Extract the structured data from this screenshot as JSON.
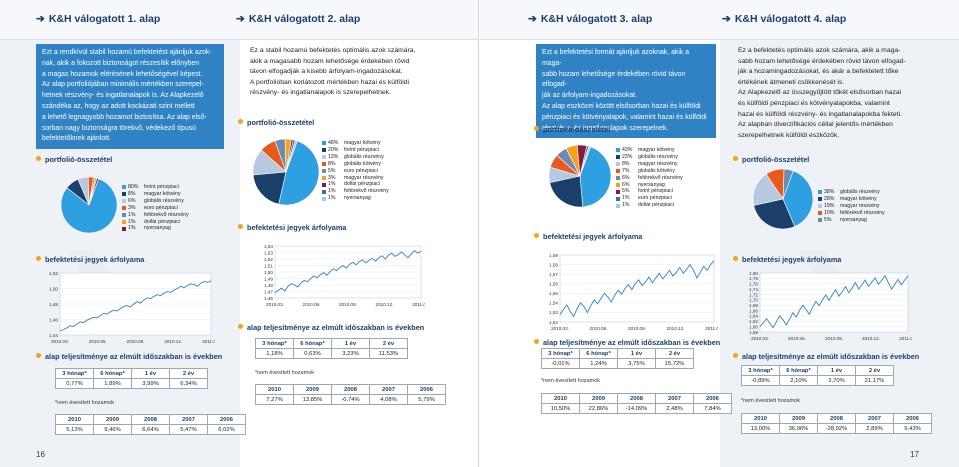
{
  "pages": {
    "left": "16",
    "right": "17"
  },
  "labels": {
    "portfolio": "portfolió-összetétel",
    "units": "befektetési jegyek árfolyama",
    "perf": "alap teljesítménye az elmúlt időszakban is években",
    "annualized": "*nem évesített hozamok"
  },
  "funds": [
    {
      "title": "K&H válogatott 1. alap",
      "desc": [
        "Ezt a rendkívül stabil hozamú befektetést ajánljuk azok-",
        "nak, akik a fokozott biztonságot részesítik előnyben",
        "a magas hozamok elérésének lehetőségével képest.",
        "Az alap portfoliójában minimális mértékben szerepel-",
        "hetnek részvény- és ingatlanalapok is. Az Alapkezelő",
        "szándéka az, hogy az adott kockázati szint mellett",
        "a lehető legnagyobb hozamot biztosítsa. Az alap első-",
        "sorban nagy biztonságra törekvő, védekező típusú",
        "befektetőknek ajánlott."
      ],
      "portfolio": [
        {
          "pct": "80%",
          "label": "forint pénzpiaci",
          "v": 80,
          "color": "#2e9fe0"
        },
        {
          "pct": "8%",
          "label": "magyar kötvény",
          "v": 8,
          "color": "#1b3f6b"
        },
        {
          "pct": "6%",
          "label": "globális részvény",
          "v": 6,
          "color": "#b7c9de"
        },
        {
          "pct": "3%",
          "label": "euro pénzpiaci",
          "v": 3,
          "color": "#e85a1b"
        },
        {
          "pct": "1%",
          "label": "feltörekvő részvény",
          "v": 1,
          "color": "#6b8bb0"
        },
        {
          "pct": "1%",
          "label": "dollár pénzpiaci",
          "v": 1,
          "color": "#f7a21c"
        },
        {
          "pct": "1%",
          "label": "nyersanyag",
          "v": 1,
          "color": "#8b1a3a"
        }
      ],
      "chart": {
        "yticks": [
          "1,52",
          "1,50",
          "1,48",
          "1,46",
          "1,44"
        ],
        "xticks": [
          "2010.03.",
          "2010.06.",
          "2010.09.",
          "2010.12.",
          "2011.03."
        ],
        "ymin": 1.44,
        "ymax": 1.52,
        "values": [
          1.445,
          1.447,
          1.449,
          1.452,
          1.451,
          1.454,
          1.457,
          1.456,
          1.459,
          1.461,
          1.463,
          1.462,
          1.465,
          1.468,
          1.467,
          1.47,
          1.472,
          1.471,
          1.474,
          1.477,
          1.478,
          1.476,
          1.48,
          1.483,
          1.481,
          1.485,
          1.488,
          1.487,
          1.49,
          1.492,
          1.491,
          1.494,
          1.496,
          1.495,
          1.498,
          1.5,
          1.503,
          1.501,
          1.504,
          1.506,
          1.505,
          1.503,
          1.507,
          1.509,
          1.508,
          1.51
        ]
      },
      "short": {
        "headers": [
          "3 hónap*",
          "6 hónap*",
          "1 év",
          "2 év"
        ],
        "values": [
          "0,77%",
          "1,89%",
          "3,99%",
          "6,34%"
        ]
      },
      "years": {
        "headers": [
          "2010",
          "2009",
          "2008",
          "2007",
          "2006"
        ],
        "values": [
          "5,13%",
          "9,46%",
          "6,64%",
          "5,47%",
          "6,02%"
        ]
      }
    },
    {
      "title": "K&H válogatott 2. alap",
      "desc": [
        "Ez a stabil hozamú befektetés optimális azok számára,",
        "akik a magasabb hozam lehetősége érdekében rövid",
        "távon elfogadják a kisebb árfolyam-ingadozásokat.",
        "A portfolióban korlátozott mértékben hazai és külföldi",
        "részvény- és ingatlanalapok is szerepelhetnek."
      ],
      "portfolio": [
        {
          "pct": "48%",
          "label": "magyar kötvény",
          "v": 48,
          "color": "#2e9fe0"
        },
        {
          "pct": "20%",
          "label": "forint pénzpiaci",
          "v": 20,
          "color": "#1b3f6b"
        },
        {
          "pct": "13%",
          "label": "globális részvény",
          "v": 13,
          "color": "#b7c9de"
        },
        {
          "pct": "8%",
          "label": "globális kötvény",
          "v": 8,
          "color": "#e85a1b"
        },
        {
          "pct": "5%",
          "label": "euro pénzpiaci",
          "v": 5,
          "color": "#6b8bb0"
        },
        {
          "pct": "3%",
          "label": "magyar részvény",
          "v": 3,
          "color": "#f7a21c"
        },
        {
          "pct": "1%",
          "label": "dollár pénzpiaci",
          "v": 1,
          "color": "#8b1a3a"
        },
        {
          "pct": "1%",
          "label": "feltörekvő részvény",
          "v": 1,
          "color": "#3a6ea5"
        },
        {
          "pct": "1%",
          "label": "nyersanyag",
          "v": 1,
          "color": "#9ccbe8"
        }
      ],
      "chart": {
        "yticks": [
          "1,54",
          "1,53",
          "1,52",
          "1,51",
          "1,50",
          "1,49",
          "1,48",
          "1,47",
          "1,46"
        ],
        "xticks": [
          "2010.03.",
          "2010.06.",
          "2010.09.",
          "2010.12.",
          "2011.03."
        ],
        "ymin": 1.46,
        "ymax": 1.54,
        "values": [
          1.468,
          1.472,
          1.475,
          1.471,
          1.478,
          1.482,
          1.48,
          1.477,
          1.483,
          1.487,
          1.485,
          1.49,
          1.494,
          1.491,
          1.496,
          1.499,
          1.495,
          1.501,
          1.505,
          1.502,
          1.507,
          1.51,
          1.506,
          1.512,
          1.515,
          1.511,
          1.516,
          1.519,
          1.514,
          1.518,
          1.521,
          1.517,
          1.522,
          1.525,
          1.52,
          1.526,
          1.529,
          1.524,
          1.527,
          1.531,
          1.526,
          1.522,
          1.528,
          1.533,
          1.529,
          1.532
        ]
      },
      "short": {
        "headers": [
          "3 hónap*",
          "6 hónap*",
          "1 év",
          "2 év"
        ],
        "values": [
          "1,18%",
          "0,63%",
          "3,23%",
          "11,53%"
        ]
      },
      "years": {
        "headers": [
          "2010",
          "2009",
          "2008",
          "2007",
          "2006"
        ],
        "values": [
          "7,27%",
          "13,85%",
          "-0,74%",
          "4,08%",
          "5,79%"
        ]
      }
    },
    {
      "title": "K&H válogatott 3. alap",
      "desc": [
        "Ezt a befektetési formát ajánljuk azoknak, akik a maga-",
        "sabb hozam lehetősége érdekében rövid távon elfogad-",
        "ják az árfolyam-ingadozásokat.",
        "Az alap eszközei között elsősorban hazai és külföldi",
        "pénzpiaci és kötvényalapok, valamint hazai és külföldi",
        "részvény- és ingatlanalapok szerepelnek."
      ],
      "portfolio": [
        {
          "pct": "43%",
          "label": "magyar kötvény",
          "v": 43,
          "color": "#2e9fe0"
        },
        {
          "pct": "23%",
          "label": "globális részvény",
          "v": 23,
          "color": "#1b3f6b"
        },
        {
          "pct": "8%",
          "label": "magyar részvény",
          "v": 8,
          "color": "#b7c9de"
        },
        {
          "pct": "7%",
          "label": "globális kötvény",
          "v": 7,
          "color": "#e85a1b"
        },
        {
          "pct": "6%",
          "label": "feltörekvő részvény",
          "v": 6,
          "color": "#6b8bb0"
        },
        {
          "pct": "6%",
          "label": "nyersanyag",
          "v": 6,
          "color": "#f7a21c"
        },
        {
          "pct": "5%",
          "label": "forint pénzpiaci",
          "v": 5,
          "color": "#8b1a3a"
        },
        {
          "pct": "1%",
          "label": "euro pénzpiaci",
          "v": 1,
          "color": "#3a6ea5"
        },
        {
          "pct": "1%",
          "label": "dollár pénzpiaci",
          "v": 1,
          "color": "#9ccbe8"
        }
      ],
      "chart": {
        "yticks": [
          "1,59",
          "1,58",
          "1,57",
          "1,56",
          "1,55",
          "1,54",
          "1,53",
          "1,52"
        ],
        "xticks": [
          "2010.03.",
          "2010.06.",
          "2010.09.",
          "2010.12.",
          "2011.03."
        ],
        "ymin": 1.52,
        "ymax": 1.59,
        "values": [
          1.528,
          1.533,
          1.538,
          1.531,
          1.526,
          1.534,
          1.54,
          1.536,
          1.53,
          1.537,
          1.543,
          1.539,
          1.545,
          1.55,
          1.546,
          1.541,
          1.548,
          1.553,
          1.549,
          1.555,
          1.559,
          1.554,
          1.56,
          1.564,
          1.558,
          1.562,
          1.567,
          1.561,
          1.566,
          1.571,
          1.565,
          1.569,
          1.574,
          1.568,
          1.572,
          1.577,
          1.571,
          1.575,
          1.58,
          1.574,
          1.566,
          1.572,
          1.578,
          1.574,
          1.58,
          1.584
        ]
      },
      "short": {
        "headers": [
          "3 hónap*",
          "6 hónap*",
          "1 év",
          "2 év"
        ],
        "values": [
          "-0,01%",
          "1,24%",
          "3,75%",
          "15,72%"
        ]
      },
      "years": {
        "headers": [
          "2010",
          "2009",
          "2008",
          "2007",
          "2006"
        ],
        "values": [
          "10,50%",
          "22,86%",
          "-14,09%",
          "2,48%",
          "7,84%"
        ]
      }
    },
    {
      "title": "K&H válogatott 4. alap",
      "desc": [
        "Ez a befektetés optimális azok számára, akik a maga-",
        "sabb hozam lehetősége érdekében rövid távon elfogad-",
        "ják a hozamingadozásokat, és akár a befektetett tőke",
        "értékének átmeneti csökkenését is.",
        "Az Alapkezelő az összegyűjtött tőkét elsősorban hazai",
        "és külföldi pénzpiaci és kötvényalapokba, valamint",
        "hazai és külföldi részvény- és ingatlanalapokba fekteti.",
        "Az alapban diverzifikációs céllal jelentős mértékben",
        "szerepelhetnek külföldi eszközök."
      ],
      "portfolio": [
        {
          "pct": "38%",
          "label": "globális részvény",
          "v": 38,
          "color": "#2e9fe0"
        },
        {
          "pct": "28%",
          "label": "magyar kötvény",
          "v": 28,
          "color": "#1b3f6b"
        },
        {
          "pct": "19%",
          "label": "magyar részvény",
          "v": 19,
          "color": "#b7c9de"
        },
        {
          "pct": "10%",
          "label": "feltörekvő részvény",
          "v": 10,
          "color": "#e85a1b"
        },
        {
          "pct": "5%",
          "label": "nyersanyag",
          "v": 5,
          "color": "#6b8bb0"
        }
      ],
      "chart": {
        "yticks": [
          "1,80",
          "1,78",
          "1,76",
          "1,74",
          "1,72",
          "1,70",
          "1,68",
          "1,66",
          "1,64",
          "1,62",
          "1,60",
          "1,58"
        ],
        "xticks": [
          "2010.03.",
          "2010.06.",
          "2010.09.",
          "2010.12.",
          "2011.03."
        ],
        "ymin": 1.58,
        "ymax": 1.8,
        "values": [
          1.6,
          1.614,
          1.63,
          1.612,
          1.596,
          1.618,
          1.64,
          1.626,
          1.606,
          1.628,
          1.652,
          1.636,
          1.66,
          1.68,
          1.664,
          1.646,
          1.672,
          1.694,
          1.678,
          1.7,
          1.718,
          1.698,
          1.72,
          1.738,
          1.714,
          1.73,
          1.75,
          1.726,
          1.744,
          1.764,
          1.74,
          1.756,
          1.774,
          1.75,
          1.766,
          1.782,
          1.758,
          1.772,
          1.79,
          1.764,
          1.74,
          1.758,
          1.776,
          1.756,
          1.774,
          1.788
        ]
      },
      "short": {
        "headers": [
          "3 hónap*",
          "6 hónap*",
          "1 év",
          "2 év"
        ],
        "values": [
          "-0,89%",
          "2,10%",
          "3,70%",
          "21,17%"
        ]
      },
      "years": {
        "headers": [
          "2010",
          "2009",
          "2008",
          "2007",
          "2006"
        ],
        "values": [
          "13,00%",
          "36,06%",
          "-28,92%",
          "2,89%",
          "9,43%"
        ]
      }
    }
  ]
}
